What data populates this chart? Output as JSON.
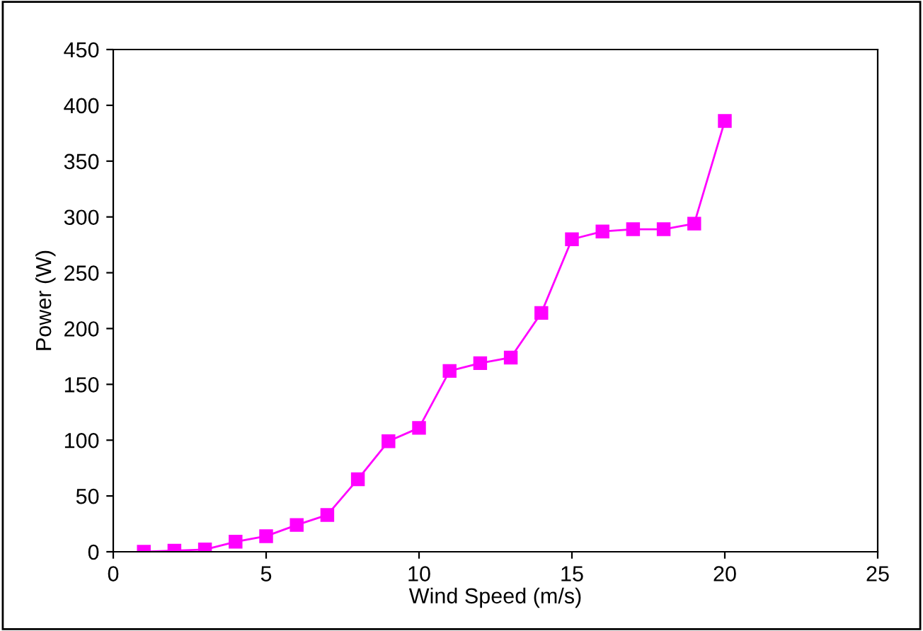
{
  "chart_data": {
    "type": "line",
    "xlabel": "Wind Speed (m/s)",
    "ylabel": "Power (W)",
    "x": [
      1,
      2,
      3,
      4,
      5,
      6,
      7,
      8,
      9,
      10,
      11,
      12,
      13,
      14,
      15,
      16,
      17,
      18,
      19,
      20
    ],
    "series": [
      {
        "color": "#ff00ff",
        "values": [
          0,
          1,
          2,
          9,
          14,
          24,
          33,
          65,
          99,
          111,
          162,
          169,
          174,
          214,
          280,
          287,
          289,
          289,
          294,
          386
        ]
      }
    ],
    "xlim": [
      0,
      25
    ],
    "xticks": [
      0,
      5,
      10,
      15,
      20,
      25
    ],
    "ylim": [
      0,
      450
    ],
    "yticks": [
      0,
      50,
      100,
      150,
      200,
      250,
      300,
      350,
      400,
      450
    ],
    "grid": false,
    "legend": false,
    "marker": "square",
    "line_style": "solid"
  }
}
